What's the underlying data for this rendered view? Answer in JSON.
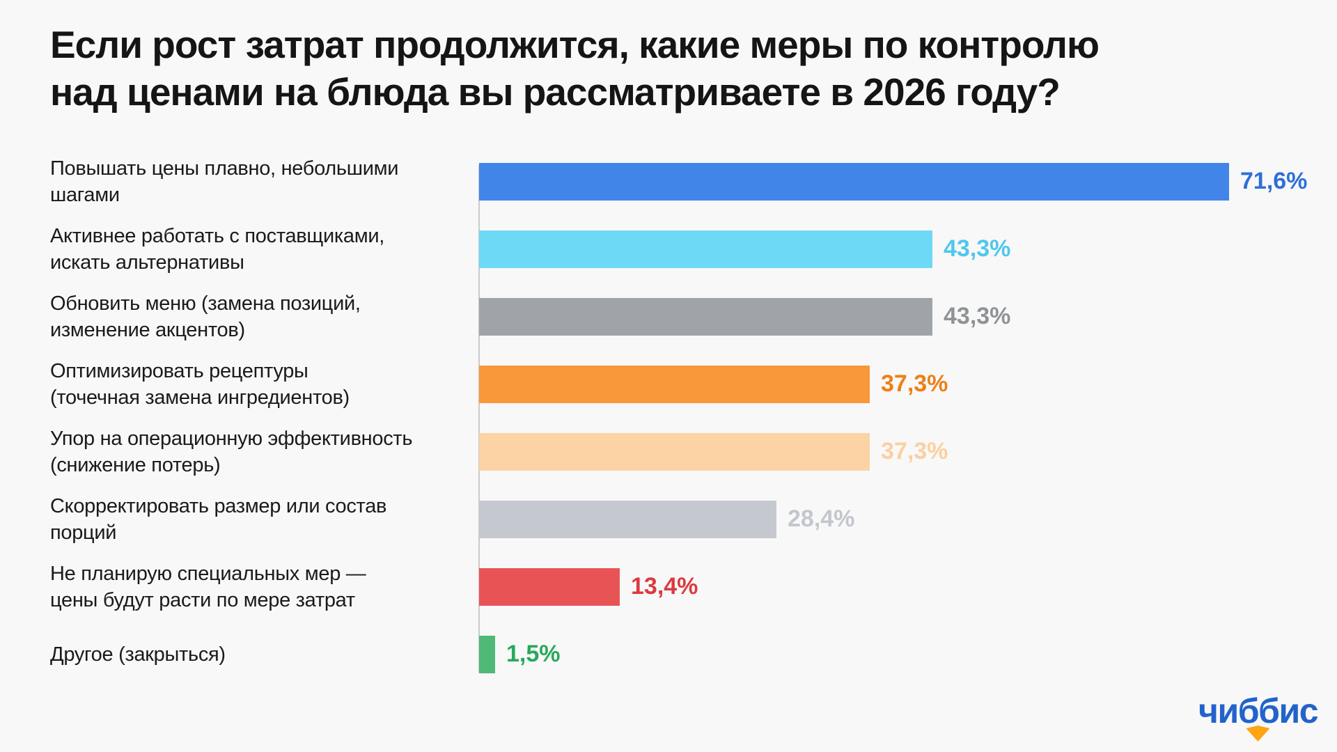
{
  "title": {
    "full": "Если рост затрат продолжится, какие меры по контролю над ценами на блюда вы рассматриваете в 2026 году?",
    "lines": [
      "Если рост затрат продолжится, какие меры по контролю",
      "над ценами на блюда вы рассматриваете в 2026 году?"
    ],
    "color": "#151515"
  },
  "chart_data": {
    "type": "bar",
    "orientation": "horizontal",
    "title": "Если рост затрат продолжится, какие меры по контролю над ценами на блюда вы рассматриваете в 2026 году?",
    "unit": "%",
    "xlim": [
      0,
      80
    ],
    "grid": false,
    "legend": "none",
    "categories": [
      "Повышать цены плавно, небольшими шагами",
      "Активнее работать с поставщиками, искать альтернативы",
      "Обновить меню (замена позиций, изменение акцентов)",
      "Оптимизировать рецептуры (точечная замена ингредиентов)",
      "Упор на операционную эффективность (снижение потерь)",
      "Скорректировать размер или состав порций",
      "Не планирую специальных мер — цены будут расти по мере затрат",
      "Другое (закрыться)"
    ],
    "category_lines": [
      [
        "Повышать цены плавно, небольшими",
        "шагами"
      ],
      [
        "Активнее работать с поставщиками,",
        "искать альтернативы"
      ],
      [
        "Обновить меню (замена позиций,",
        "изменение акцентов)"
      ],
      [
        "Оптимизировать рецептуры",
        "(точечная замена ингредиентов)"
      ],
      [
        "Упор на операционную эффективность",
        "(снижение потерь)"
      ],
      [
        "Скорректировать размер или состав",
        "порций"
      ],
      [
        "Не планирую специальных мер —",
        "цены будут расти по мере затрат"
      ],
      [
        "Другое (закрыться)"
      ]
    ],
    "values": [
      71.6,
      43.3,
      43.3,
      37.3,
      37.3,
      28.4,
      13.4,
      1.5
    ],
    "value_labels": [
      "71,6%",
      "43,3%",
      "43,3%",
      "37,3%",
      "37,3%",
      "28,4%",
      "13,4%",
      "1,5%"
    ],
    "bar_colors": [
      "#4285E8",
      "#6ED9F6",
      "#A0A4A8",
      "#F9983B",
      "#FCD3A5",
      "#C5C9CF",
      "#E85456",
      "#50B976"
    ],
    "value_label_colors": [
      "#2E6FD8",
      "#4EC8EC",
      "#8F9396",
      "#EE7F16",
      "#FBD0A0",
      "#C2C7CE",
      "#DC3A40",
      "#28A85B"
    ],
    "axis_line_color": "#CBCBCB",
    "background_color": "#F8F8F8"
  },
  "logo": {
    "text": "чиббис",
    "text_color": "#2263CB",
    "beak_color": "#FFA513"
  }
}
